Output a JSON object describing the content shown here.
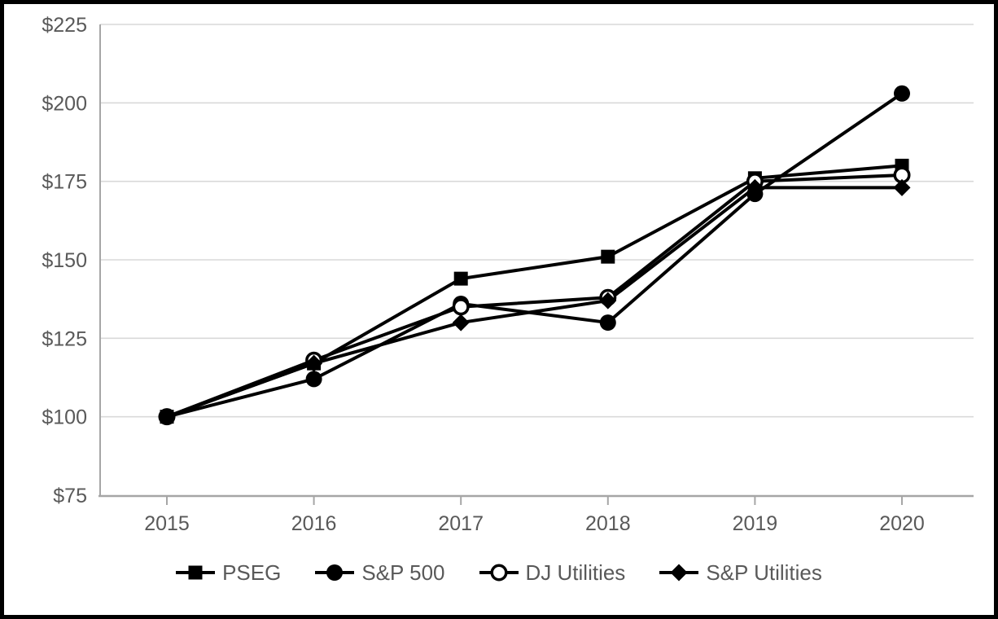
{
  "chart_data": {
    "type": "line",
    "title": "",
    "x_categories": [
      "2015",
      "2016",
      "2017",
      "2018",
      "2019",
      "2020"
    ],
    "y_axis": {
      "min": 75,
      "max": 225,
      "step": 25,
      "tick_labels": [
        "$75",
        "$100",
        "$125",
        "$150",
        "$175",
        "$200",
        "$225"
      ],
      "currency_prefix": "$"
    },
    "series": [
      {
        "name": "PSEG",
        "marker": "filled-square",
        "values": [
          100,
          117,
          144,
          151,
          176,
          180
        ]
      },
      {
        "name": "S&P 500",
        "marker": "filled-circle",
        "values": [
          100,
          112,
          136,
          130,
          171,
          203
        ]
      },
      {
        "name": "DJ Utilities",
        "marker": "open-circle",
        "values": [
          100,
          118,
          135,
          138,
          175,
          177
        ]
      },
      {
        "name": "S&P Utilities",
        "marker": "filled-diamond",
        "values": [
          100,
          117,
          130,
          137,
          173,
          173
        ]
      }
    ],
    "legend_position": "bottom",
    "grid": "horizontal",
    "colors": {
      "series": "#000000",
      "grid": "#d9d9d9",
      "axis": "#a6a6a6",
      "tick_text": "#595959",
      "background": "#ffffff",
      "frame_border": "#000000"
    }
  }
}
